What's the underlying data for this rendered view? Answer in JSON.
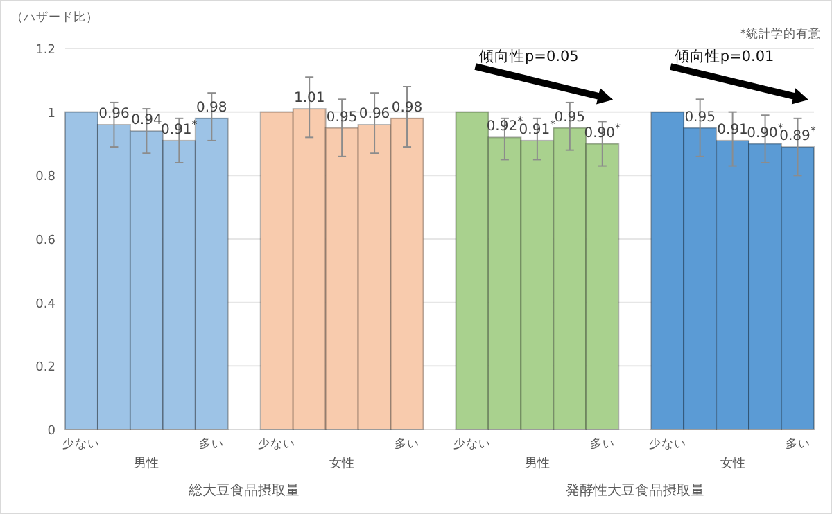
{
  "chart_data": {
    "type": "bar",
    "ylabel": "（ハザード比）",
    "categories": [
      "少ない",
      null,
      null,
      null,
      "多い",
      null,
      "少ない",
      null,
      null,
      null,
      "多い",
      null,
      "少ない",
      null,
      null,
      null,
      "多い",
      null,
      "少ない",
      null,
      null,
      null,
      "多い"
    ],
    "values": [
      1,
      0.96,
      0.94,
      0.91,
      0.98,
      null,
      1,
      1.01,
      0.95,
      0.96,
      0.98,
      null,
      1,
      0.92,
      0.91,
      0.95,
      0.9,
      null,
      1,
      0.95,
      0.91,
      0.9,
      0.89
    ],
    "colors": [
      "#9dc3e6",
      "#9dc3e6",
      "#9dc3e6",
      "#9dc3e6",
      "#9dc3e6",
      null,
      "#f8cbad",
      "#f8cbad",
      "#f8cbad",
      "#f8cbad",
      "#f8cbad",
      null,
      "#a9d18e",
      "#a9d18e",
      "#a9d18e",
      "#a9d18e",
      "#a9d18e",
      null,
      "#5b9bd5",
      "#5b9bd5",
      "#5b9bd5",
      "#5b9bd5",
      "#5b9bd5"
    ],
    "errors": [
      null,
      [
        0.89,
        1.03
      ],
      [
        0.87,
        1.01
      ],
      [
        0.84,
        0.98
      ],
      [
        0.91,
        1.06
      ],
      null,
      null,
      [
        0.92,
        1.11
      ],
      [
        0.86,
        1.04
      ],
      [
        0.87,
        1.06
      ],
      [
        0.89,
        1.08
      ],
      null,
      null,
      [
        0.85,
        0.98
      ],
      [
        0.85,
        0.98
      ],
      [
        0.88,
        1.03
      ],
      [
        0.83,
        0.97
      ],
      null,
      null,
      [
        0.86,
        1.04
      ],
      [
        0.83,
        1.0
      ],
      [
        0.84,
        0.99
      ],
      [
        0.8,
        0.98
      ]
    ],
    "value_labels": [
      null,
      "0.96",
      "0.94",
      "0.91$^{*}$",
      "0.98",
      null,
      null,
      "1.01",
      "0.95",
      "0.96",
      "0.98",
      null,
      null,
      "0.92$^{*}$",
      "0.91$^{*}$",
      "0.95",
      "0.90$^{*}$",
      null,
      null,
      "0.95",
      "0.91",
      "0.90$^{*}$",
      "0.89$^{*}$"
    ],
    "ylim": [
      0,
      1.2
    ],
    "yticks": [
      0,
      0.2,
      0.4,
      0.6,
      0.8,
      1,
      1.2
    ],
    "grid": "y",
    "annotations": [
      "男性",
      "女性",
      "男性",
      "女性",
      "総大豆食品摂取量",
      "発酵性大豆食品摂取量",
      "傾向性p=0.05",
      "傾向性p=0.01",
      "*統計学的有意"
    ]
  }
}
